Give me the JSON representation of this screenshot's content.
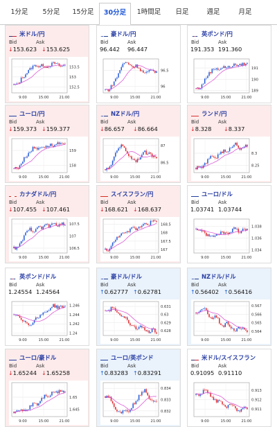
{
  "tabs": [
    {
      "label": "1分足",
      "active": false
    },
    {
      "label": "5分足",
      "active": false
    },
    {
      "label": "15分足",
      "active": false
    },
    {
      "label": "30分足",
      "active": true
    },
    {
      "label": "1時間足",
      "active": false
    },
    {
      "label": "日足",
      "active": false
    },
    {
      "label": "週足",
      "active": false
    },
    {
      "label": "月足",
      "active": false
    }
  ],
  "labels": {
    "bid": "Bid",
    "ask": "Ask"
  },
  "colors": {
    "up_bg": "#eaf2fb",
    "down_bg": "#fdebeb",
    "bull": "#1f57d8",
    "bear": "#e0262c",
    "ma": "#d946d0"
  },
  "cards": [
    {
      "pair": "米ドル/円",
      "flag": "us-flag",
      "dir": "down",
      "bid": "153.623",
      "ask": "153.625",
      "ticks": [
        "153.5",
        "153",
        "152.5"
      ],
      "ylim": [
        152.2,
        153.9
      ],
      "start": 152.6,
      "path": [
        152.6,
        152.9,
        153.1,
        153.3,
        153.5,
        153.6,
        153.5,
        153.6,
        153.5,
        153.6,
        153.7,
        153.6,
        153.5,
        153.6
      ]
    },
    {
      "pair": "豪ドル/円",
      "flag": "au-flag",
      "dir": "flat",
      "bid": "96.442",
      "ask": "96.447",
      "ticks": [
        "96.5",
        "96"
      ],
      "ylim": [
        95.8,
        96.85
      ],
      "start": 95.9,
      "path": [
        95.9,
        96.1,
        96.3,
        96.6,
        96.75,
        96.7,
        96.6,
        96.65,
        96.5,
        96.4,
        96.45,
        96.5,
        96.45
      ]
    },
    {
      "pair": "英ポンド/円",
      "flag": "gb-flag",
      "dir": "flat",
      "bid": "191.353",
      "ask": "191.360",
      "ticks": [
        "191",
        "190",
        "189"
      ],
      "ylim": [
        188.8,
        191.8
      ],
      "start": 189.2,
      "path": [
        189.2,
        189.8,
        190.4,
        190.8,
        191.0,
        190.9,
        191.1,
        191.0,
        191.2,
        191.3,
        191.2,
        191.4,
        191.35
      ]
    },
    {
      "pair": "ユーロ/円",
      "flag": "eu-flag",
      "dir": "down",
      "bid": "159.373",
      "ask": "159.377",
      "ticks": [
        "159",
        "158"
      ],
      "ylim": [
        157.5,
        159.8
      ],
      "start": 157.8,
      "path": [
        157.8,
        158.2,
        158.6,
        158.9,
        159.2,
        159.1,
        159.3,
        159.2,
        159.4,
        159.3,
        159.45,
        159.4,
        159.37
      ]
    },
    {
      "pair": "NZドル/円",
      "flag": "nz-flag",
      "dir": "down",
      "bid": "86.657",
      "ask": "86.664",
      "ticks": [
        "87",
        "86.5"
      ],
      "ylim": [
        86.2,
        87.2
      ],
      "start": 86.3,
      "path": [
        86.3,
        86.6,
        86.9,
        87.0,
        86.9,
        86.7,
        86.6,
        86.55,
        86.7,
        86.8,
        86.75,
        86.7,
        86.66
      ]
    },
    {
      "pair": "ランド/円",
      "flag": "za-flag",
      "dir": "down",
      "bid": "8.328",
      "ask": "8.337",
      "ticks": [
        "8.3",
        "8.25"
      ],
      "ylim": [
        8.22,
        8.36
      ],
      "start": 8.24,
      "path": [
        8.24,
        8.25,
        8.27,
        8.29,
        8.28,
        8.3,
        8.31,
        8.3,
        8.33,
        8.34,
        8.32,
        8.33,
        8.33
      ]
    },
    {
      "pair": "カナダドル/円",
      "flag": "ca-flag",
      "dir": "down",
      "bid": "107.455",
      "ask": "107.461",
      "ticks": [
        "107.5",
        "107",
        "106.5"
      ],
      "ylim": [
        106.3,
        107.7
      ],
      "start": 106.5,
      "path": [
        106.5,
        106.8,
        107.1,
        107.3,
        107.2,
        107.4,
        107.3,
        107.5,
        107.4,
        107.5,
        107.45,
        107.5,
        107.46
      ]
    },
    {
      "pair": "スイスフラン/円",
      "flag": "ch-flag",
      "dir": "down",
      "bid": "168.621",
      "ask": "168.637",
      "ticks": [
        "168.5",
        "168",
        "167.5",
        "167"
      ],
      "ylim": [
        166.8,
        168.8
      ],
      "start": 167.0,
      "path": [
        167.0,
        167.4,
        167.7,
        168.0,
        167.9,
        168.1,
        168.3,
        168.2,
        168.4,
        168.6,
        168.5,
        168.7,
        168.62
      ]
    },
    {
      "pair": "ユーロ/ドル",
      "flag": "eu-flag",
      "dir": "flat",
      "bid": "1.03741",
      "ask": "1.03744",
      "ticks": [
        "1.038",
        "1.036",
        "1.034"
      ],
      "ylim": [
        1.0335,
        1.0392
      ],
      "start": 1.0375,
      "path": [
        1.0375,
        1.0368,
        1.0365,
        1.0362,
        1.0364,
        1.0368,
        1.037,
        1.0366,
        1.0372,
        1.0378,
        1.037,
        1.0376,
        1.0374
      ]
    },
    {
      "pair": "英ポンド/ドル",
      "flag": "gb-flag",
      "dir": "flat",
      "bid": "1.24554",
      "ask": "1.24564",
      "ticks": [
        "1.246",
        "1.244",
        "1.242",
        "1.24"
      ],
      "ylim": [
        1.2395,
        1.2468
      ],
      "start": 1.244,
      "path": [
        1.244,
        1.243,
        1.2422,
        1.2418,
        1.2425,
        1.2435,
        1.244,
        1.2445,
        1.2452,
        1.246,
        1.2455,
        1.2458,
        1.2455
      ]
    },
    {
      "pair": "豪ドル/ドル",
      "flag": "au-flag",
      "dir": "up",
      "bid": "0.62777",
      "ask": "0.62781",
      "ticks": [
        "0.631",
        "0.63",
        "0.629",
        "0.628"
      ],
      "ylim": [
        0.6274,
        0.6316
      ],
      "start": 0.6305,
      "path": [
        0.6305,
        0.631,
        0.6302,
        0.6296,
        0.6298,
        0.629,
        0.6285,
        0.6282,
        0.6288,
        0.628,
        0.6278,
        0.6282,
        0.6278
      ]
    },
    {
      "pair": "NZドル/ドル",
      "flag": "nz-flag",
      "dir": "up",
      "bid": "0.56402",
      "ask": "0.56416",
      "ticks": [
        "0.567",
        "0.566",
        "0.565",
        "0.564"
      ],
      "ylim": [
        0.5635,
        0.5675
      ],
      "start": 0.5662,
      "path": [
        0.5662,
        0.5668,
        0.566,
        0.5655,
        0.5658,
        0.565,
        0.5646,
        0.565,
        0.5644,
        0.564,
        0.5645,
        0.5642,
        0.564
      ]
    },
    {
      "pair": "ユーロ/豪ドル",
      "flag": "eu-flag",
      "dir": "down",
      "bid": "1.65244",
      "ask": "1.65258",
      "ticks": [
        "1.65",
        "1.645"
      ],
      "ylim": [
        1.642,
        1.656
      ],
      "start": 1.644,
      "path": [
        1.644,
        1.645,
        1.6445,
        1.646,
        1.648,
        1.647,
        1.6495,
        1.651,
        1.6505,
        1.6525,
        1.652,
        1.653,
        1.6524
      ]
    },
    {
      "pair": "ユーロ/英ポンド",
      "flag": "eu-flag",
      "dir": "up",
      "bid": "0.83283",
      "ask": "0.83291",
      "ticks": [
        "0.834",
        "0.833",
        "0.832"
      ],
      "ylim": [
        0.8315,
        0.8345
      ],
      "start": 0.8333,
      "path": [
        0.8333,
        0.8325,
        0.832,
        0.8318,
        0.8322,
        0.832,
        0.8325,
        0.833,
        0.8335,
        0.8338,
        0.8332,
        0.833,
        0.8328
      ]
    },
    {
      "pair": "米ドル/スイスフラン",
      "flag": "us-flag",
      "dir": "flat",
      "bid": "0.91095",
      "ask": "0.91110",
      "ticks": [
        "0.913",
        "0.912",
        "0.911"
      ],
      "ylim": [
        0.9102,
        0.9138
      ],
      "start": 0.9125,
      "path": [
        0.9125,
        0.913,
        0.9128,
        0.9122,
        0.9118,
        0.912,
        0.9115,
        0.9112,
        0.9116,
        0.911,
        0.9108,
        0.9112,
        0.9109
      ]
    }
  ],
  "xticks": [
    "9:00",
    "15:00",
    "21:00"
  ]
}
